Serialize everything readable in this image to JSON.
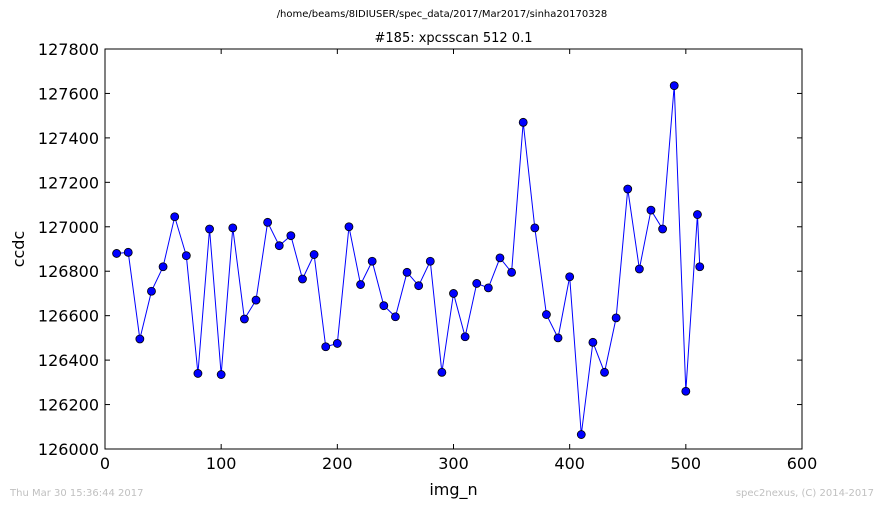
{
  "suptitle": "/home/beams/8IDIUSER/spec_data/2017/Mar2017/sinha20170328",
  "footer": {
    "left": "Thu Mar 30 15:36:44 2017",
    "right": "spec2nexus, (C) 2014-2017"
  },
  "colors": {
    "line": "#0000ff",
    "marker_fill": "#0000ff",
    "marker_edge": "#000000",
    "axes": "#000000",
    "footer_text": "#c0c0c0"
  },
  "chart_data": {
    "type": "line",
    "title": "#185: xpcsscan 512 0.1",
    "xlabel": "img_n",
    "ylabel": "ccdc",
    "xlim": [
      0,
      600
    ],
    "ylim": [
      126000,
      127800
    ],
    "xticks": [
      0,
      100,
      200,
      300,
      400,
      500,
      600
    ],
    "yticks": [
      126000,
      126200,
      126400,
      126600,
      126800,
      127000,
      127200,
      127400,
      127600,
      127800
    ],
    "grid": false,
    "marker": "circle",
    "series": [
      {
        "x": [
          10,
          20,
          30,
          40,
          50,
          60,
          70,
          80,
          90,
          100,
          110,
          120,
          130,
          140,
          150,
          160,
          170,
          180,
          190,
          200,
          210,
          220,
          230,
          240,
          250,
          260,
          270,
          280,
          290,
          300,
          310,
          320,
          330,
          340,
          350,
          360,
          370,
          380,
          390,
          400,
          410,
          420,
          430,
          440,
          450,
          460,
          470,
          480,
          490,
          500,
          510,
          512
        ],
        "y": [
          126880,
          126885,
          126495,
          126710,
          126820,
          127045,
          126870,
          126340,
          126990,
          126335,
          126995,
          126585,
          126670,
          127020,
          126915,
          126960,
          126765,
          126875,
          126460,
          126475,
          127000,
          126740,
          126845,
          126645,
          126595,
          126795,
          126735,
          126845,
          126345,
          126700,
          126505,
          126745,
          126725,
          126860,
          126795,
          127470,
          126995,
          126605,
          126500,
          126775,
          126065,
          126480,
          126345,
          126590,
          127170,
          126810,
          127075,
          126990,
          127635,
          126260,
          127055,
          126820
        ]
      }
    ]
  }
}
